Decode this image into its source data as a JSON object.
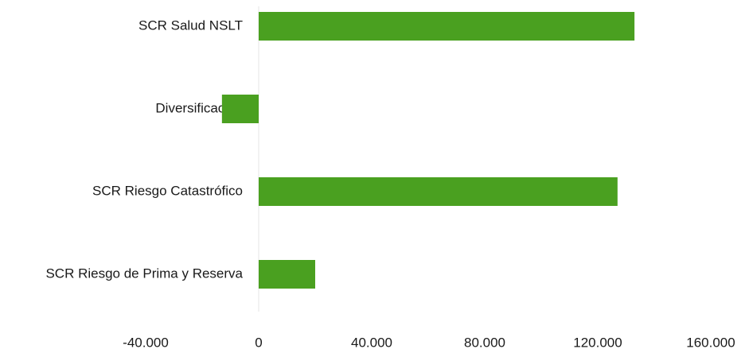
{
  "chart_data": {
    "type": "barh",
    "categories": [
      "SCR Salud NSLT",
      "Diversificación",
      "SCR Riesgo Catastrófico",
      "SCR Riesgo de Prima y Reserva"
    ],
    "values": [
      133000,
      -13000,
      127000,
      20000
    ],
    "color": "#4aa020",
    "xlim": [
      -40000,
      160000
    ],
    "xticks": [
      {
        "value": -40000,
        "label": "-40.000"
      },
      0,
      {
        "value": 40000,
        "label": "40.000"
      },
      {
        "value": 80000,
        "label": "80.000"
      },
      {
        "value": 120000,
        "label": "120.000"
      },
      {
        "value": 160000,
        "label": "160.000"
      }
    ]
  }
}
